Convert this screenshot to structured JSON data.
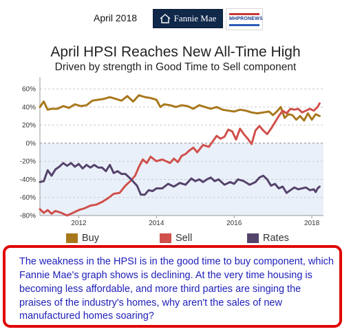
{
  "header": {
    "date": "April 2018",
    "fannie_mae_logo": "Fannie Mae",
    "mhpronews_logo": "MHPRONEWS"
  },
  "chart_data": {
    "type": "line",
    "title": "April HPSI Reaches New All-Time High",
    "subtitle": "Driven by strength in Good Time to Sell component",
    "xlabel": "",
    "ylabel": "",
    "x_ticks": [
      "2012",
      "2014",
      "2016",
      "2018"
    ],
    "y_ticks": [
      "60%",
      "40%",
      "20%",
      "0%",
      "-20%",
      "-40%",
      "-60%",
      "-80%"
    ],
    "ylim": [
      -80,
      70
    ],
    "xlim": [
      2011.0,
      2018.3
    ],
    "grid": "horizontal dashed",
    "negative_region_shaded": true,
    "legend_placement": "bottom",
    "series": [
      {
        "name": "Buy",
        "color": "#a8781c",
        "points": [
          [
            2011.0,
            40
          ],
          [
            2011.1,
            46
          ],
          [
            2011.2,
            37
          ],
          [
            2011.3,
            38
          ],
          [
            2011.45,
            38
          ],
          [
            2011.6,
            41
          ],
          [
            2011.75,
            39
          ],
          [
            2011.9,
            43
          ],
          [
            2012.05,
            41
          ],
          [
            2012.2,
            42
          ],
          [
            2012.35,
            47
          ],
          [
            2012.5,
            48
          ],
          [
            2012.65,
            49
          ],
          [
            2012.8,
            51
          ],
          [
            2012.95,
            49
          ],
          [
            2013.1,
            47
          ],
          [
            2013.25,
            52
          ],
          [
            2013.4,
            46
          ],
          [
            2013.55,
            53
          ],
          [
            2013.7,
            51
          ],
          [
            2013.85,
            50
          ],
          [
            2014.0,
            48
          ],
          [
            2014.1,
            40
          ],
          [
            2014.2,
            43
          ],
          [
            2014.35,
            42
          ],
          [
            2014.5,
            40
          ],
          [
            2014.65,
            42
          ],
          [
            2014.8,
            41
          ],
          [
            2014.95,
            38
          ],
          [
            2015.1,
            42
          ],
          [
            2015.25,
            40
          ],
          [
            2015.4,
            38
          ],
          [
            2015.55,
            40
          ],
          [
            2015.7,
            37
          ],
          [
            2015.85,
            36
          ],
          [
            2016.0,
            35
          ],
          [
            2016.15,
            37
          ],
          [
            2016.3,
            36
          ],
          [
            2016.45,
            34
          ],
          [
            2016.6,
            33
          ],
          [
            2016.75,
            34
          ],
          [
            2016.9,
            35
          ],
          [
            2017.0,
            31
          ],
          [
            2017.1,
            35
          ],
          [
            2017.2,
            40
          ],
          [
            2017.3,
            28
          ],
          [
            2017.4,
            32
          ],
          [
            2017.5,
            31
          ],
          [
            2017.6,
            26
          ],
          [
            2017.7,
            30
          ],
          [
            2017.8,
            25
          ],
          [
            2017.9,
            33
          ],
          [
            2018.0,
            26
          ],
          [
            2018.1,
            32
          ],
          [
            2018.2,
            30
          ]
        ]
      },
      {
        "name": "Sell",
        "color": "#d0504b",
        "points": [
          [
            2011.0,
            -73
          ],
          [
            2011.1,
            -77
          ],
          [
            2011.2,
            -74
          ],
          [
            2011.3,
            -78
          ],
          [
            2011.4,
            -75
          ],
          [
            2011.55,
            -77
          ],
          [
            2011.7,
            -80
          ],
          [
            2011.85,
            -77
          ],
          [
            2012.0,
            -74
          ],
          [
            2012.15,
            -72
          ],
          [
            2012.3,
            -69
          ],
          [
            2012.45,
            -68
          ],
          [
            2012.6,
            -65
          ],
          [
            2012.75,
            -61
          ],
          [
            2012.9,
            -56
          ],
          [
            2013.05,
            -55
          ],
          [
            2013.2,
            -47
          ],
          [
            2013.35,
            -41
          ],
          [
            2013.45,
            -36
          ],
          [
            2013.55,
            -26
          ],
          [
            2013.65,
            -18
          ],
          [
            2013.75,
            -22
          ],
          [
            2013.85,
            -15
          ],
          [
            2014.0,
            -20
          ],
          [
            2014.15,
            -18
          ],
          [
            2014.25,
            -20
          ],
          [
            2014.35,
            -22
          ],
          [
            2014.45,
            -17
          ],
          [
            2014.55,
            -21
          ],
          [
            2014.65,
            -14
          ],
          [
            2014.75,
            -12
          ],
          [
            2014.85,
            -8
          ],
          [
            2014.95,
            -5
          ],
          [
            2015.05,
            -10
          ],
          [
            2015.2,
            -2
          ],
          [
            2015.35,
            -4
          ],
          [
            2015.45,
            2
          ],
          [
            2015.55,
            8
          ],
          [
            2015.65,
            5
          ],
          [
            2015.75,
            7
          ],
          [
            2015.85,
            15
          ],
          [
            2015.95,
            13
          ],
          [
            2016.05,
            4
          ],
          [
            2016.15,
            16
          ],
          [
            2016.25,
            10
          ],
          [
            2016.35,
            5
          ],
          [
            2016.45,
            -1
          ],
          [
            2016.55,
            14
          ],
          [
            2016.65,
            19
          ],
          [
            2016.75,
            14
          ],
          [
            2016.85,
            10
          ],
          [
            2016.95,
            16
          ],
          [
            2017.05,
            23
          ],
          [
            2017.15,
            30
          ],
          [
            2017.25,
            36
          ],
          [
            2017.35,
            33
          ],
          [
            2017.45,
            38
          ],
          [
            2017.55,
            37
          ],
          [
            2017.65,
            38
          ],
          [
            2017.75,
            34
          ],
          [
            2017.85,
            36
          ],
          [
            2017.95,
            38
          ],
          [
            2018.05,
            36
          ],
          [
            2018.15,
            40
          ],
          [
            2018.2,
            44
          ]
        ]
      },
      {
        "name": "Rates",
        "color": "#54436b",
        "points": [
          [
            2011.0,
            -43
          ],
          [
            2011.1,
            -42
          ],
          [
            2011.2,
            -30
          ],
          [
            2011.3,
            -36
          ],
          [
            2011.4,
            -29
          ],
          [
            2011.5,
            -26
          ],
          [
            2011.6,
            -22
          ],
          [
            2011.7,
            -25
          ],
          [
            2011.8,
            -22
          ],
          [
            2011.9,
            -26
          ],
          [
            2012.0,
            -23
          ],
          [
            2012.1,
            -28
          ],
          [
            2012.2,
            -24
          ],
          [
            2012.3,
            -27
          ],
          [
            2012.4,
            -24
          ],
          [
            2012.5,
            -27
          ],
          [
            2012.6,
            -27
          ],
          [
            2012.7,
            -31
          ],
          [
            2012.8,
            -24
          ],
          [
            2012.9,
            -33
          ],
          [
            2013.0,
            -31
          ],
          [
            2013.1,
            -34
          ],
          [
            2013.2,
            -34
          ],
          [
            2013.35,
            -40
          ],
          [
            2013.5,
            -47
          ],
          [
            2013.6,
            -57
          ],
          [
            2013.7,
            -57
          ],
          [
            2013.8,
            -52
          ],
          [
            2013.9,
            -53
          ],
          [
            2014.0,
            -50
          ],
          [
            2014.15,
            -50
          ],
          [
            2014.3,
            -45
          ],
          [
            2014.45,
            -48
          ],
          [
            2014.6,
            -44
          ],
          [
            2014.75,
            -46
          ],
          [
            2014.9,
            -39
          ],
          [
            2015.0,
            -42
          ],
          [
            2015.1,
            -40
          ],
          [
            2015.2,
            -43
          ],
          [
            2015.3,
            -40
          ],
          [
            2015.4,
            -38
          ],
          [
            2015.5,
            -42
          ],
          [
            2015.6,
            -40
          ],
          [
            2015.75,
            -46
          ],
          [
            2015.9,
            -43
          ],
          [
            2016.0,
            -45
          ],
          [
            2016.1,
            -40
          ],
          [
            2016.25,
            -42
          ],
          [
            2016.4,
            -46
          ],
          [
            2016.55,
            -43
          ],
          [
            2016.65,
            -38
          ],
          [
            2016.75,
            -36
          ],
          [
            2016.85,
            -40
          ],
          [
            2016.95,
            -47
          ],
          [
            2017.05,
            -45
          ],
          [
            2017.15,
            -50
          ],
          [
            2017.25,
            -48
          ],
          [
            2017.35,
            -55
          ],
          [
            2017.45,
            -52
          ],
          [
            2017.55,
            -49
          ],
          [
            2017.65,
            -51
          ],
          [
            2017.75,
            -50
          ],
          [
            2017.85,
            -49
          ],
          [
            2017.95,
            -52
          ],
          [
            2018.05,
            -51
          ],
          [
            2018.1,
            -54
          ],
          [
            2018.15,
            -50
          ],
          [
            2018.2,
            -48
          ]
        ]
      }
    ]
  },
  "callout": {
    "text": "The weakness in the HPSI is in the good time to buy component, which Fannie Mae's graph shows is declining.  At the very time housing is becoming less affordable, and more third parties are singing the praises of the industry's homes, why aren't the sales of new manufactured homes soaring?",
    "border_color": "#e00000",
    "text_color": "#1d1db8"
  }
}
